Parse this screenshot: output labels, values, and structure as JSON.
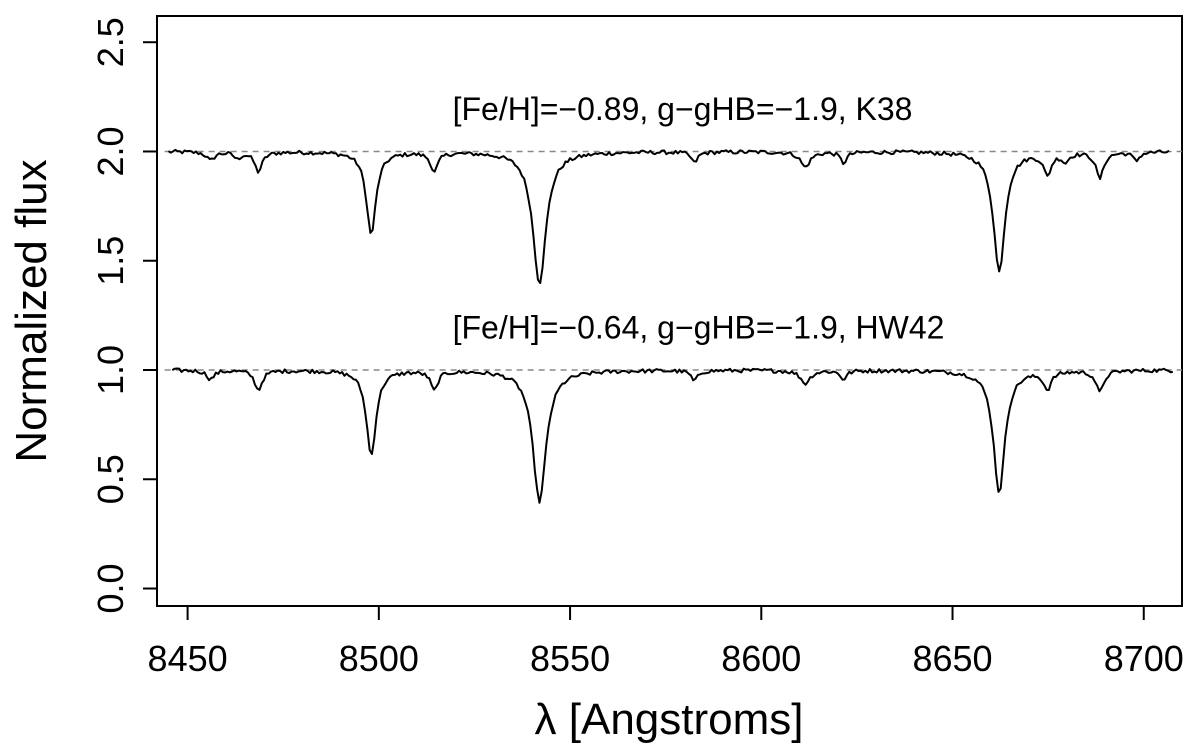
{
  "chart_data": {
    "type": "line",
    "xlabel": "λ [Angstroms]",
    "ylabel": "Normalized flux",
    "xlim": [
      8442,
      8710
    ],
    "ylim": [
      -0.08,
      2.62
    ],
    "x_ticks": [
      8450,
      8500,
      8550,
      8600,
      8650,
      8700
    ],
    "x_tick_labels": [
      "8450",
      "8500",
      "8550",
      "8600",
      "8650",
      "8700"
    ],
    "y_ticks": [
      0.0,
      0.5,
      1.0,
      1.5,
      2.0,
      2.5
    ],
    "y_tick_labels": [
      "0.0",
      "0.5",
      "1.0",
      "1.5",
      "2.0",
      "2.5"
    ],
    "reference_lines": [
      2.0,
      1.0
    ],
    "annotations": [
      {
        "text": "[Fe/H]=−0.89, g−gHB=−1.9, K38",
        "x": 8450,
        "y": 2.19
      },
      {
        "text": "[Fe/H]=−0.64, g−gHB=−1.9, HW42",
        "x": 8450,
        "y": 1.19
      }
    ],
    "series": [
      {
        "offset": 2.0,
        "start": 8445,
        "end": 8707,
        "lines": [
          {
            "c": 8456,
            "d": 0.04,
            "w": 1.2
          },
          {
            "c": 8463,
            "d": 0.03,
            "w": 1.0
          },
          {
            "c": 8468.5,
            "d": 0.09,
            "w": 1.2
          },
          {
            "c": 8498.0,
            "d": 0.38,
            "w": 1.5
          },
          {
            "c": 8514.5,
            "d": 0.09,
            "w": 1.1
          },
          {
            "c": 8542.0,
            "d": 0.6,
            "w": 2.1
          },
          {
            "c": 8582.5,
            "d": 0.05,
            "w": 1.0
          },
          {
            "c": 8611.5,
            "d": 0.07,
            "w": 1.5
          },
          {
            "c": 8621.5,
            "d": 0.05,
            "w": 1.0
          },
          {
            "c": 8662.2,
            "d": 0.55,
            "w": 1.8
          },
          {
            "c": 8674.8,
            "d": 0.1,
            "w": 1.2
          },
          {
            "c": 8679.5,
            "d": 0.04,
            "w": 1.0
          },
          {
            "c": 8688.5,
            "d": 0.12,
            "w": 1.2
          },
          {
            "c": 8698,
            "d": 0.04,
            "w": 1.0
          }
        ]
      },
      {
        "offset": 1.0,
        "start": 8446,
        "end": 8708,
        "lines": [
          {
            "c": 8456,
            "d": 0.04,
            "w": 1.2
          },
          {
            "c": 8468.5,
            "d": 0.09,
            "w": 1.2
          },
          {
            "c": 8498.0,
            "d": 0.39,
            "w": 1.5
          },
          {
            "c": 8514.5,
            "d": 0.09,
            "w": 1.1
          },
          {
            "c": 8542.0,
            "d": 0.6,
            "w": 2.1
          },
          {
            "c": 8582.5,
            "d": 0.05,
            "w": 1.0
          },
          {
            "c": 8611.5,
            "d": 0.06,
            "w": 1.5
          },
          {
            "c": 8621.5,
            "d": 0.04,
            "w": 1.0
          },
          {
            "c": 8662.2,
            "d": 0.56,
            "w": 1.8
          },
          {
            "c": 8674.8,
            "d": 0.08,
            "w": 1.2
          },
          {
            "c": 8688.5,
            "d": 0.1,
            "w": 1.2
          }
        ]
      }
    ],
    "colors": {
      "line": "#000000",
      "reference": "#888888",
      "axis": "#000000"
    }
  }
}
